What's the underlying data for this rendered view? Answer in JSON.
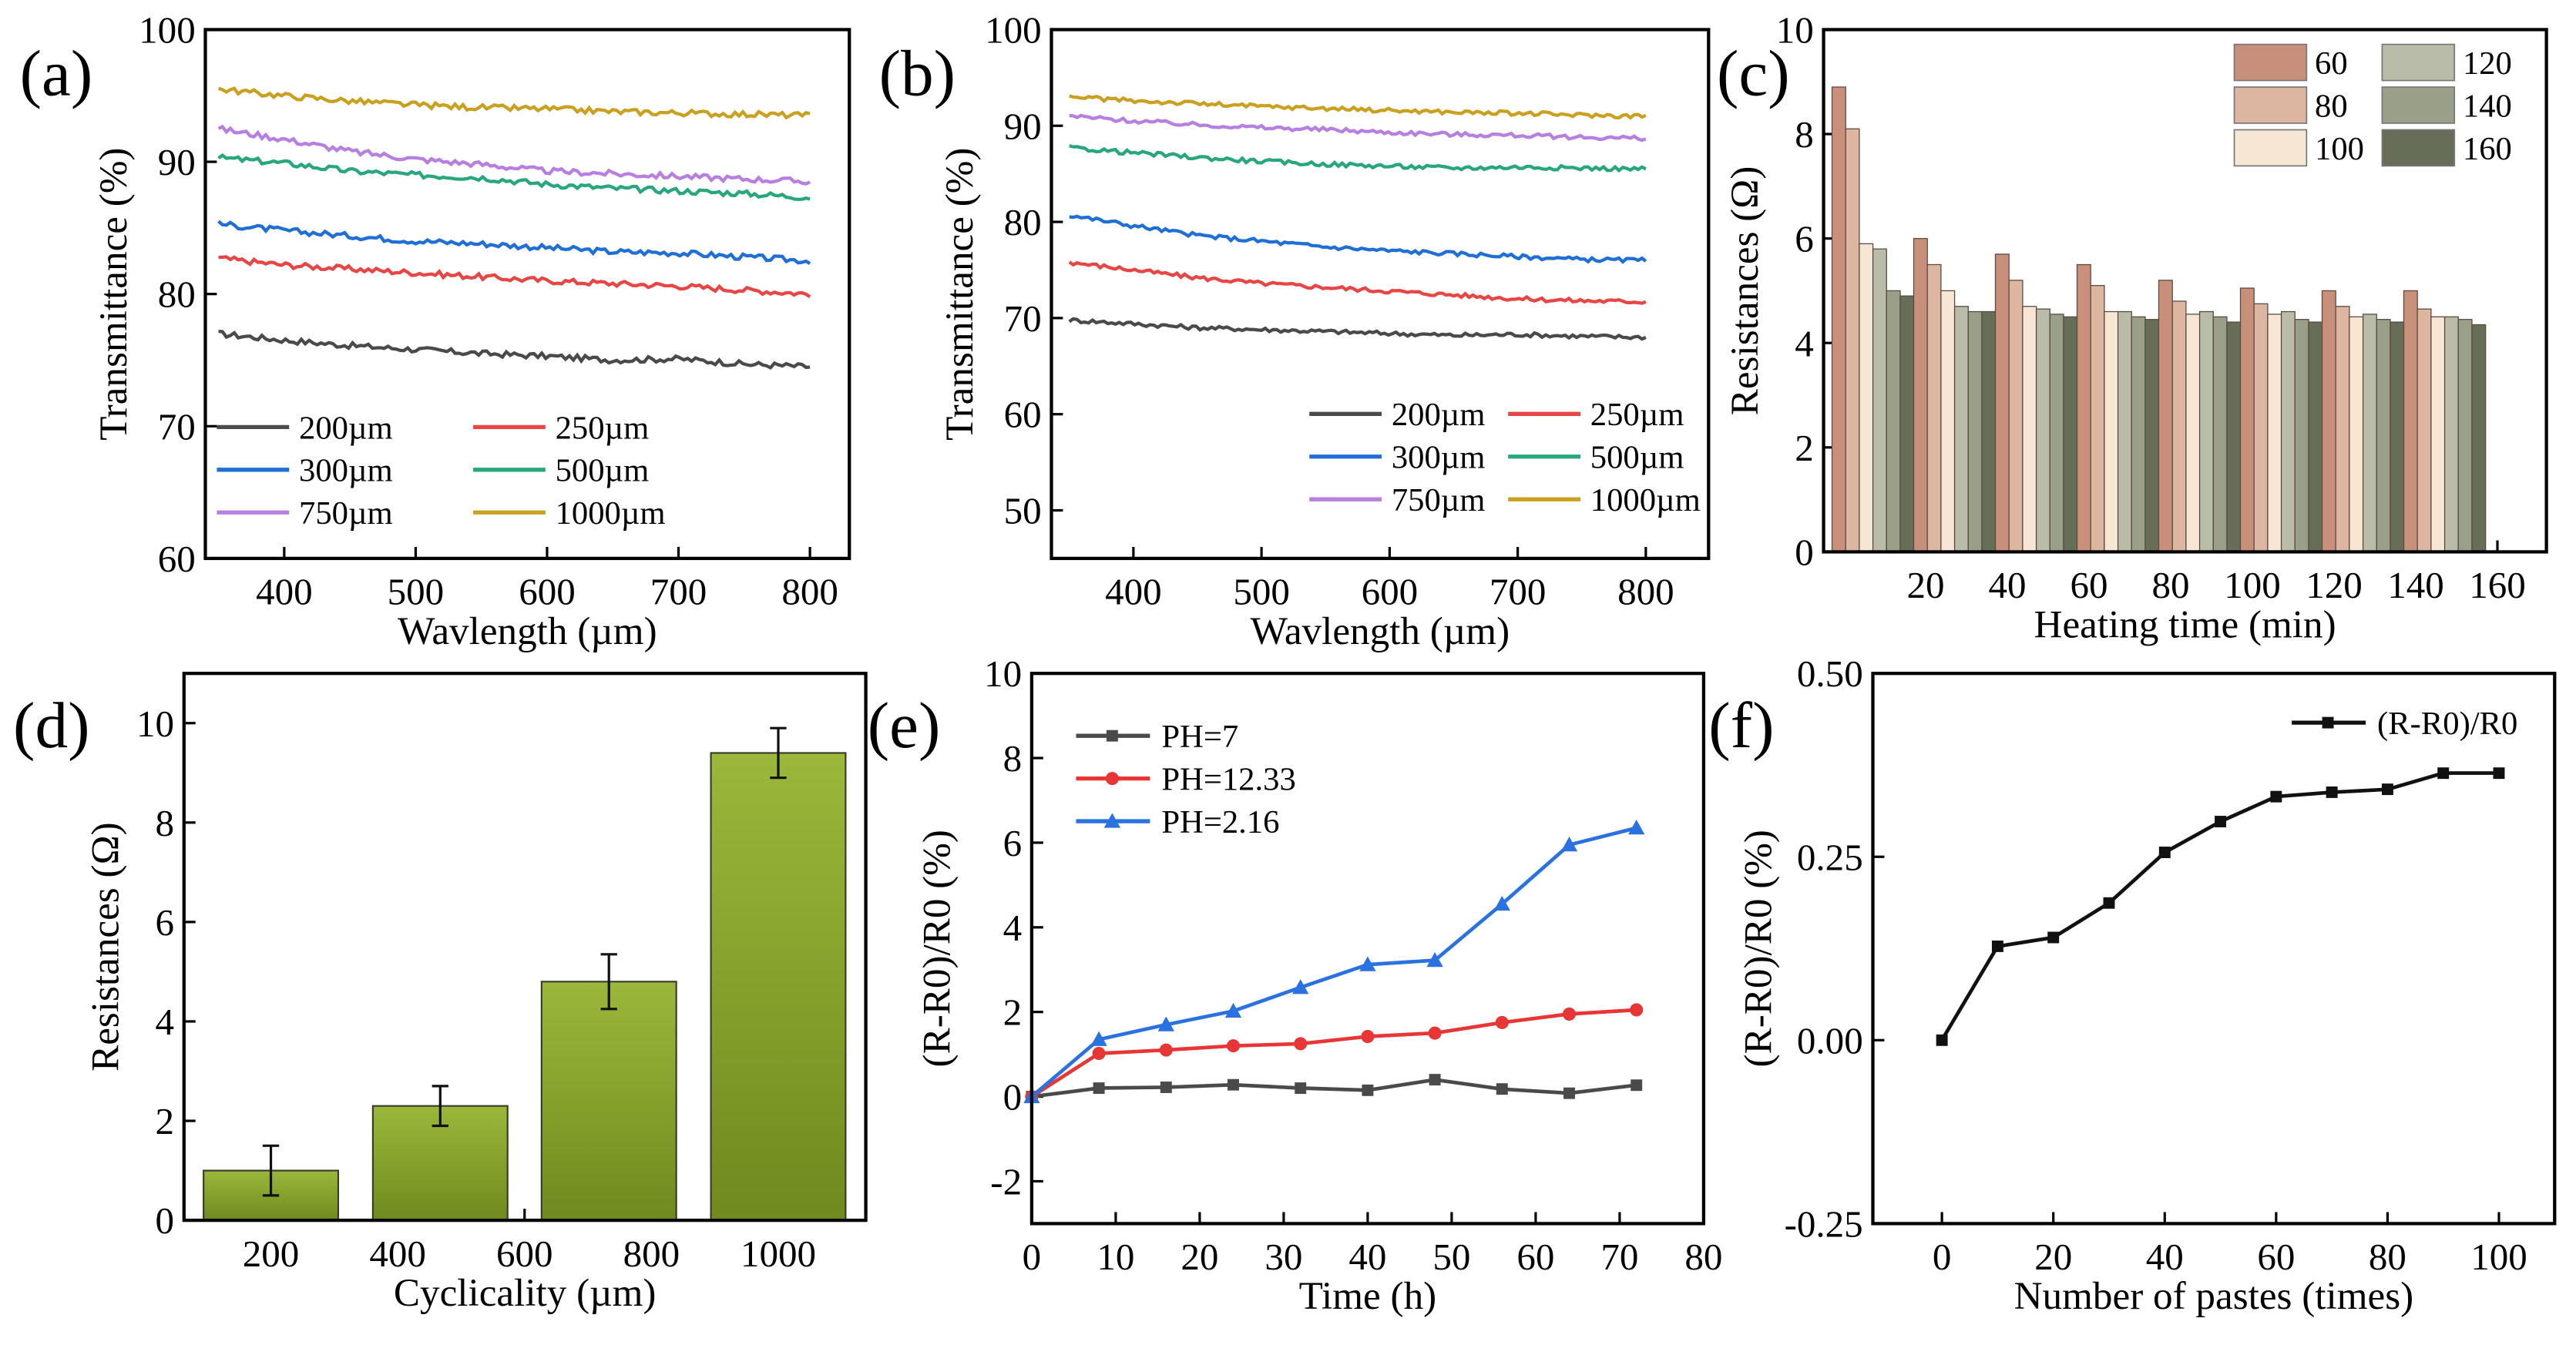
{
  "chart_data": [
    {
      "panel": "(a)",
      "type": "line",
      "xlabel": "Wavlength (µm)",
      "ylabel": "Transmittance (%)",
      "xlim": [
        340,
        830
      ],
      "ylim": [
        60,
        100
      ],
      "xticks": [
        400,
        500,
        600,
        700,
        800
      ],
      "yticks": [
        60,
        70,
        80,
        90,
        100
      ],
      "x": [
        350,
        400,
        450,
        500,
        550,
        600,
        650,
        700,
        750,
        800
      ],
      "series": [
        {
          "name": "200µm",
          "color": "#4a4a4a",
          "values": [
            77,
            76.5,
            76.1,
            75.8,
            75.5,
            75.3,
            75.0,
            75.1,
            74.7,
            74.5
          ]
        },
        {
          "name": "250µm",
          "color": "#e84545",
          "values": [
            82.7,
            82.2,
            81.9,
            81.6,
            81.3,
            81.0,
            80.8,
            80.6,
            80.3,
            80.0
          ]
        },
        {
          "name": "300µm",
          "color": "#1f6fd6",
          "values": [
            85.3,
            84.8,
            84.4,
            84.0,
            83.8,
            83.5,
            83.2,
            83.1,
            82.8,
            82.5
          ]
        },
        {
          "name": "500µm",
          "color": "#27a77a",
          "values": [
            90.3,
            89.9,
            89.3,
            89.0,
            88.8,
            88.3,
            88.0,
            87.8,
            87.6,
            87.3
          ]
        },
        {
          "name": "750µm",
          "color": "#b67fe0",
          "values": [
            92.5,
            91.7,
            90.8,
            90.2,
            89.8,
            89.3,
            89.1,
            88.9,
            88.7,
            88.5
          ]
        },
        {
          "name": "1000µm",
          "color": "#c9a020",
          "values": [
            95.5,
            95.0,
            94.6,
            94.3,
            94.1,
            94.0,
            93.8,
            93.7,
            93.6,
            93.5
          ]
        }
      ],
      "legend": "bottom-left"
    },
    {
      "panel": "(b)",
      "type": "line",
      "xlabel": "Wavlength (µm)",
      "ylabel": "Transmittance (%)",
      "xlim": [
        336,
        849
      ],
      "ylim": [
        45,
        100
      ],
      "xticks": [
        400,
        500,
        600,
        700,
        800
      ],
      "yticks": [
        50,
        60,
        70,
        80,
        90,
        100
      ],
      "x": [
        350,
        400,
        450,
        500,
        550,
        600,
        650,
        700,
        750,
        800
      ],
      "series": [
        {
          "name": "200µm",
          "color": "#4a4a4a",
          "values": [
            69.8,
            69.4,
            69.0,
            68.8,
            68.6,
            68.4,
            68.2,
            68.3,
            68.1,
            68.0
          ]
        },
        {
          "name": "250µm",
          "color": "#e84545",
          "values": [
            75.8,
            75.0,
            74.2,
            73.6,
            73.2,
            72.8,
            72.4,
            72.0,
            71.8,
            71.7
          ]
        },
        {
          "name": "300µm",
          "color": "#1f6fd6",
          "values": [
            80.7,
            79.6,
            78.6,
            78.0,
            77.4,
            77.0,
            76.7,
            76.4,
            76.1,
            76.0
          ]
        },
        {
          "name": "500µm",
          "color": "#27a77a",
          "values": [
            87.7,
            87.2,
            86.7,
            86.3,
            86.0,
            85.8,
            85.6,
            85.7,
            85.6,
            85.5
          ]
        },
        {
          "name": "750µm",
          "color": "#b67fe0",
          "values": [
            91.0,
            90.5,
            90.1,
            89.8,
            89.6,
            89.3,
            89.1,
            89.0,
            88.8,
            88.7
          ]
        },
        {
          "name": "1000µm",
          "color": "#c9a020",
          "values": [
            93.0,
            92.6,
            92.3,
            92.0,
            91.8,
            91.6,
            91.4,
            91.3,
            91.1,
            91.0
          ]
        }
      ],
      "legend": "bottom-right"
    },
    {
      "panel": "(c)",
      "type": "bar",
      "xlabel": "Heating time (min)",
      "ylabel": "Resistances (Ω)",
      "xlim": [
        -5,
        172
      ],
      "ylim": [
        0,
        10
      ],
      "yticks": [
        0,
        2,
        4,
        6,
        8,
        10
      ],
      "categories": [
        20,
        40,
        60,
        80,
        100,
        120,
        140,
        160
      ],
      "series": [
        {
          "name": "60",
          "color": "#c8907a",
          "values": [
            8.9,
            6.0,
            5.7,
            5.5,
            5.2,
            5.05,
            5.0,
            5.0
          ]
        },
        {
          "name": "80",
          "color": "#dcb6a0",
          "values": [
            8.1,
            5.5,
            5.2,
            5.1,
            4.8,
            4.75,
            4.7,
            4.65
          ]
        },
        {
          "name": "100",
          "color": "#f8e6d4",
          "values": [
            5.9,
            5.0,
            4.7,
            4.6,
            4.55,
            4.55,
            4.5,
            4.5
          ]
        },
        {
          "name": "120",
          "color": "#b8bca8",
          "values": [
            5.8,
            4.7,
            4.65,
            4.6,
            4.6,
            4.6,
            4.55,
            4.5
          ]
        },
        {
          "name": "140",
          "color": "#9a9f88",
          "values": [
            5.0,
            4.6,
            4.55,
            4.5,
            4.5,
            4.45,
            4.45,
            4.45
          ]
        },
        {
          "name": "160",
          "color": "#666e58",
          "values": [
            4.9,
            4.6,
            4.5,
            4.45,
            4.4,
            4.4,
            4.4,
            4.35
          ]
        }
      ],
      "legend": "top-right"
    },
    {
      "panel": "(d)",
      "type": "bar",
      "xlabel": "Cyclicality (µm)",
      "ylabel": "Resistances (Ω)",
      "xlim": [
        63,
        1138
      ],
      "ylim": [
        0,
        11
      ],
      "xticks": [
        200,
        400,
        600,
        800,
        1000
      ],
      "yticks": [
        0,
        2,
        4,
        6,
        8,
        10
      ],
      "x": [
        200,
        467,
        733,
        1000
      ],
      "values": [
        1.0,
        2.3,
        4.8,
        9.4
      ],
      "errors": [
        0.5,
        0.4,
        0.55,
        0.5
      ],
      "color": "#8aa42a"
    },
    {
      "panel": "(e)",
      "type": "line",
      "xlabel": "Time (h)",
      "ylabel": "(R-R0)/R0 (%)",
      "xlim": [
        0,
        80
      ],
      "ylim": [
        -3,
        10
      ],
      "xticks": [
        0,
        10,
        20,
        30,
        40,
        50,
        60,
        70,
        80
      ],
      "yticks": [
        -2,
        0,
        2,
        4,
        6,
        8,
        10
      ],
      "x": [
        0,
        8,
        16,
        24,
        32,
        40,
        48,
        56,
        64,
        72
      ],
      "series": [
        {
          "name": "PH=7",
          "color": "#4a4a4a",
          "marker": "square",
          "values": [
            0,
            0.2,
            0.22,
            0.28,
            0.2,
            0.15,
            0.4,
            0.18,
            0.08,
            0.27
          ]
        },
        {
          "name": "PH=12.33",
          "color": "#e83535",
          "marker": "circle",
          "values": [
            0,
            1.02,
            1.1,
            1.2,
            1.25,
            1.42,
            1.5,
            1.75,
            1.95,
            2.05
          ]
        },
        {
          "name": "PH=2.16",
          "color": "#2a72e0",
          "marker": "triangle",
          "values": [
            0,
            1.35,
            1.7,
            2.02,
            2.58,
            3.12,
            3.22,
            4.55,
            5.95,
            6.35
          ]
        }
      ],
      "legend": "top-left"
    },
    {
      "panel": "(f)",
      "type": "line",
      "xlabel": "Number of pastes (times)",
      "ylabel": "(R-R0)/R0 (%)",
      "xlim": [
        -12.4,
        110
      ],
      "ylim": [
        -0.25,
        0.5
      ],
      "xticks": [
        0,
        20,
        40,
        60,
        80,
        100
      ],
      "yticks": [
        -0.25,
        0.0,
        0.25,
        0.5
      ],
      "ytick_labels": [
        "-0.25",
        "0.00",
        "0.25",
        "0.50"
      ],
      "x": [
        0,
        10,
        20,
        30,
        40,
        50,
        60,
        70,
        80,
        90,
        100
      ],
      "series": [
        {
          "name": "(R-R0)/R0",
          "color": "#111111",
          "marker": "square",
          "values": [
            0,
            0.128,
            0.14,
            0.187,
            0.256,
            0.298,
            0.332,
            0.338,
            0.342,
            0.364,
            0.364
          ]
        }
      ],
      "legend": "top-right"
    }
  ]
}
